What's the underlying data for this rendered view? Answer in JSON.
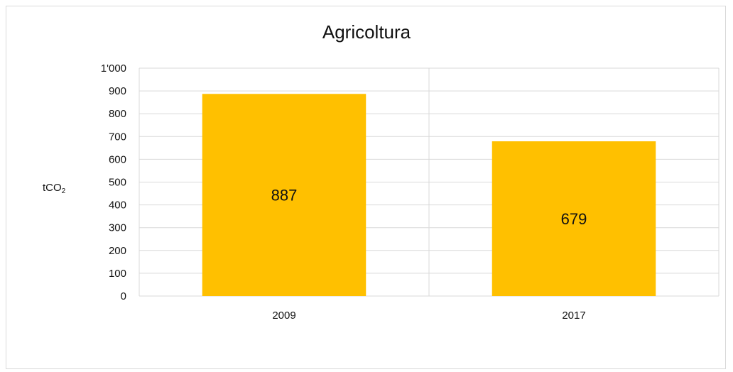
{
  "chart_data": {
    "type": "bar",
    "title": "Agricoltura",
    "ylabel_main": "tCO",
    "ylabel_sub": "2",
    "categories": [
      "2009",
      "2017"
    ],
    "series": [
      {
        "values": [
          887,
          679
        ],
        "color": "#FFC000"
      }
    ],
    "data_labels": [
      "887",
      "679"
    ],
    "ylim": [
      0,
      1000
    ],
    "yticks": [
      0,
      100,
      200,
      300,
      400,
      500,
      600,
      700,
      800,
      900,
      1000
    ],
    "ytick_labels": [
      "0",
      "100",
      "200",
      "300",
      "400",
      "500",
      "600",
      "700",
      "800",
      "900",
      "1'000"
    ],
    "grid": true,
    "legend": "none"
  }
}
